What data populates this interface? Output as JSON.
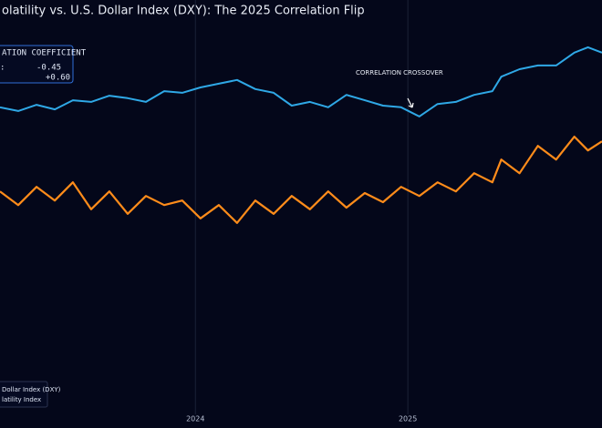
{
  "chart_data": {
    "type": "line",
    "title": "olatility vs. U.S. Dollar Index (DXY): The 2025 Correlation Flip",
    "x": [
      2023.08,
      2023.166,
      2023.252,
      2023.338,
      2023.423,
      2023.509,
      2023.595,
      2023.681,
      2023.767,
      2023.853,
      2023.938,
      2024.024,
      2024.11,
      2024.196,
      2024.282,
      2024.368,
      2024.453,
      2024.539,
      2024.625,
      2024.711,
      2024.797,
      2024.883,
      2024.968,
      2025.054,
      2025.14,
      2025.226,
      2025.312,
      2025.398,
      2025.44,
      2025.526,
      2025.612,
      2025.698,
      2025.784,
      2025.848,
      2025.914
    ],
    "series": [
      {
        "name": "Dollar Index (DXY)",
        "color": "#2fa8e6",
        "values": [
          74.1,
          73.2,
          74.7,
          73.6,
          75.8,
          75.4,
          76.9,
          76.3,
          75.4,
          78.0,
          77.6,
          78.9,
          79.8,
          80.7,
          78.5,
          77.6,
          74.5,
          75.4,
          74.1,
          77.1,
          75.8,
          74.5,
          74.1,
          71.9,
          74.9,
          75.4,
          77.1,
          78.0,
          81.5,
          83.3,
          84.2,
          84.2,
          87.3,
          88.6,
          87.3
        ]
      },
      {
        "name": "latility Index",
        "color": "#ff8c1a",
        "values": [
          53.8,
          50.5,
          54.9,
          51.6,
          56.0,
          49.5,
          53.8,
          48.4,
          52.7,
          50.5,
          51.6,
          47.3,
          50.5,
          46.2,
          51.6,
          48.4,
          52.7,
          49.5,
          53.8,
          49.9,
          53.4,
          51.2,
          54.9,
          52.7,
          56.0,
          53.8,
          58.2,
          56.0,
          61.5,
          58.2,
          64.8,
          61.5,
          67.0,
          63.7,
          65.9
        ]
      }
    ],
    "xlim": [
      2023.08,
      2025.914
    ],
    "xticks": [
      2024,
      2025
    ],
    "ylim": [
      0,
      100
    ],
    "grid": true,
    "annotation": "CORRELATION CROSSOVER",
    "correlation": {
      "title": "ATION COEFFICIENT",
      "values": [
        -0.45,
        0.6
      ],
      "value_labels": [
        "-0.45",
        "+0.60"
      ]
    }
  }
}
